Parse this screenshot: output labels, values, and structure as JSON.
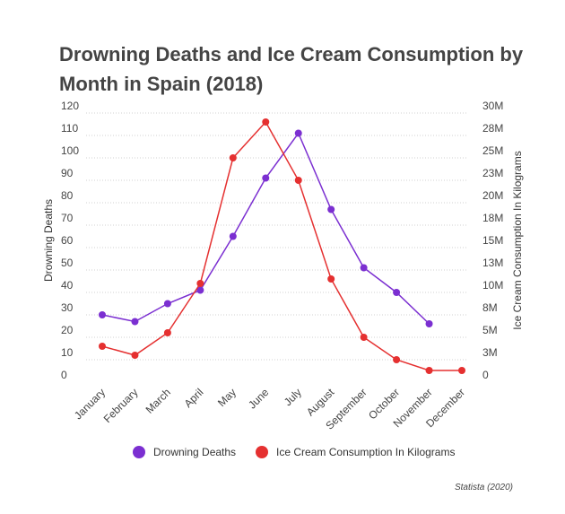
{
  "chart_data": {
    "type": "line",
    "title": "Drowning Deaths and Ice Cream Consumption by Month in Spain (2018)",
    "categories": [
      "January",
      "February",
      "March",
      "April",
      "May",
      "June",
      "July",
      "August",
      "September",
      "October",
      "November",
      "December"
    ],
    "series": [
      {
        "name": "Drowning Deaths",
        "axis": "left",
        "color": "#7b2fd1",
        "values": [
          30,
          27,
          35,
          41,
          65,
          91,
          111,
          77,
          51,
          40,
          26,
          null
        ]
      },
      {
        "name": "Ice Cream Consumption In Kilograms",
        "axis": "right",
        "color": "#e53030",
        "values": [
          4000000,
          3000000,
          5500000,
          11000000,
          25000000,
          29000000,
          22500000,
          11500000,
          5000000,
          2500000,
          1300000,
          1300000
        ]
      }
    ],
    "left_axis": {
      "label": "Drowning Deaths",
      "ylim": [
        0,
        120
      ],
      "ticks": [
        "0",
        "10",
        "20",
        "30",
        "40",
        "50",
        "60",
        "70",
        "80",
        "90",
        "100",
        "110",
        "120"
      ]
    },
    "right_axis": {
      "label": "Ice Cream Consumption In Kilograms",
      "ylim": [
        0,
        30000000
      ],
      "ticks": [
        "0",
        "3M",
        "5M",
        "8M",
        "10M",
        "13M",
        "15M",
        "18M",
        "20M",
        "23M",
        "25M",
        "28M",
        "30M"
      ]
    },
    "grid": true,
    "legend_position": "bottom"
  },
  "source": "Statista (2020)"
}
